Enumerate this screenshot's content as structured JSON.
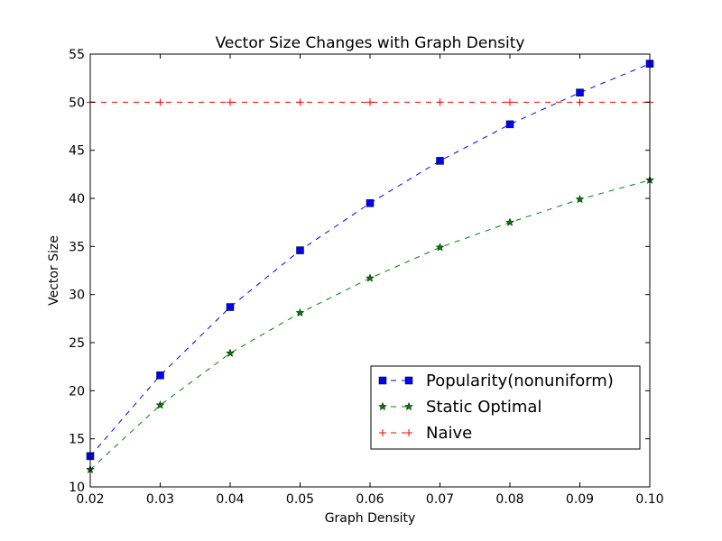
{
  "chart_data": {
    "type": "line",
    "title": "Vector Size Changes with Graph Density",
    "xlabel": "Graph Density",
    "ylabel": "Vector Size",
    "xlim": [
      0.02,
      0.1
    ],
    "ylim": [
      10,
      55
    ],
    "xticks": [
      "0.02",
      "0.03",
      "0.04",
      "0.05",
      "0.06",
      "0.07",
      "0.08",
      "0.09",
      "0.10"
    ],
    "yticks": [
      "10",
      "15",
      "20",
      "25",
      "30",
      "35",
      "40",
      "45",
      "50",
      "55"
    ],
    "grid": false,
    "legend_position": "bottom-right",
    "x": [
      0.02,
      0.03,
      0.04,
      0.05,
      0.06,
      0.07,
      0.08,
      0.09,
      0.1
    ],
    "series": [
      {
        "name": "Popularity(nonuniform)",
        "color": "#0000ff",
        "marker": "square",
        "line_style": "dashed",
        "values": [
          13.2,
          21.6,
          28.7,
          34.6,
          39.5,
          43.9,
          47.7,
          51.0,
          54.0
        ]
      },
      {
        "name": "Static Optimal",
        "color": "#008000",
        "marker": "star",
        "line_style": "dashed",
        "values": [
          11.8,
          18.5,
          23.9,
          28.1,
          31.7,
          34.9,
          37.5,
          39.9,
          41.9
        ]
      },
      {
        "name": "Naive",
        "color": "#ff0000",
        "marker": "plus",
        "line_style": "dashed",
        "values": [
          50,
          50,
          50,
          50,
          50,
          50,
          50,
          50,
          50
        ]
      }
    ]
  }
}
